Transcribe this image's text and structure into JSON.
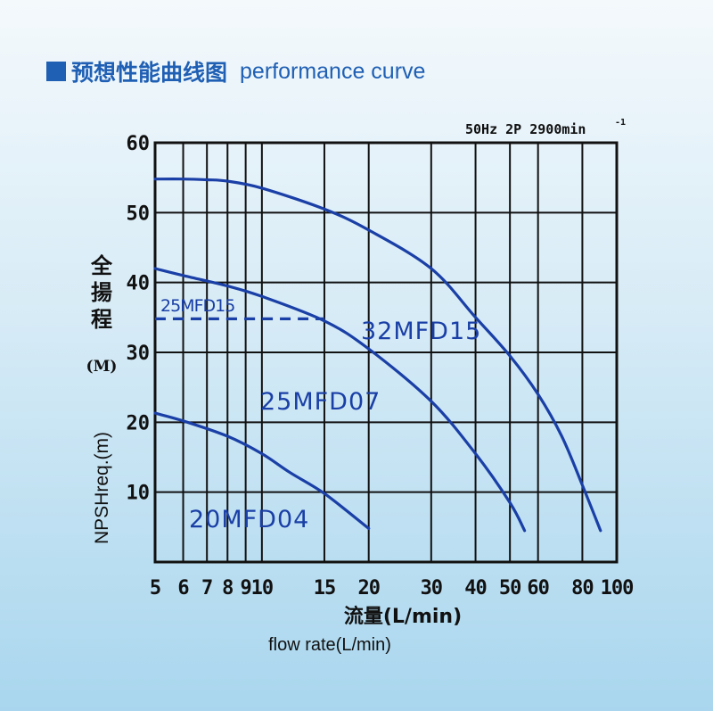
{
  "header": {
    "title_cn": "预想性能曲线图",
    "title_en": "performance curve",
    "accent_color": "#1f5fb4"
  },
  "chart_data": {
    "type": "line",
    "spec_label": "50Hz  2P  2900min",
    "spec_superscript": "-1",
    "ylabel_cn": [
      "全",
      "揚",
      "程"
    ],
    "ylabel_unit": "(M)",
    "ylabel_npsh": "NPSHreq.(m)",
    "xlabel_cn": "流量(L/min)",
    "xlabel_en": "flow rate(L/min)",
    "xscale": "log",
    "xlim": [
      5,
      100
    ],
    "ylim": [
      0,
      60
    ],
    "xticks": [
      5,
      6,
      7,
      8,
      9,
      10,
      15,
      20,
      30,
      40,
      50,
      60,
      80,
      100
    ],
    "xtick_labels": [
      "5",
      "6",
      "7",
      "8",
      "9",
      "10",
      "15",
      "20",
      "30",
      "40",
      "50",
      "60",
      "80",
      "100"
    ],
    "yticks": [
      10,
      20,
      30,
      40,
      50,
      60
    ],
    "ytick_labels": [
      "10",
      "20",
      "30",
      "40",
      "50",
      "60"
    ],
    "grid": true,
    "line_color": "#1a3fa6",
    "series": [
      {
        "name": "32MFD15",
        "x": [
          5,
          6,
          7,
          8,
          10,
          15,
          20,
          30,
          40,
          50,
          60,
          70,
          80,
          90
        ],
        "y": [
          54.8,
          54.8,
          54.7,
          54.5,
          53.5,
          50.5,
          47.5,
          42,
          35,
          29.5,
          24,
          18,
          11,
          4.5
        ]
      },
      {
        "name": "25MFD07",
        "x": [
          5,
          6,
          8,
          10,
          15,
          20,
          30,
          40,
          50,
          55
        ],
        "y": [
          42,
          41,
          39.5,
          38,
          34.5,
          30.5,
          23,
          15.5,
          8.5,
          4.5
        ]
      },
      {
        "name": "20MFD04",
        "x": [
          5,
          6,
          8,
          10,
          12,
          15,
          20
        ],
        "y": [
          21.3,
          20.2,
          18,
          15.5,
          12.8,
          9.8,
          4.8
        ]
      },
      {
        "name": "25MFD15",
        "style": "dashed",
        "x": [
          5,
          15
        ],
        "y": [
          34.8,
          34.8
        ]
      }
    ]
  }
}
